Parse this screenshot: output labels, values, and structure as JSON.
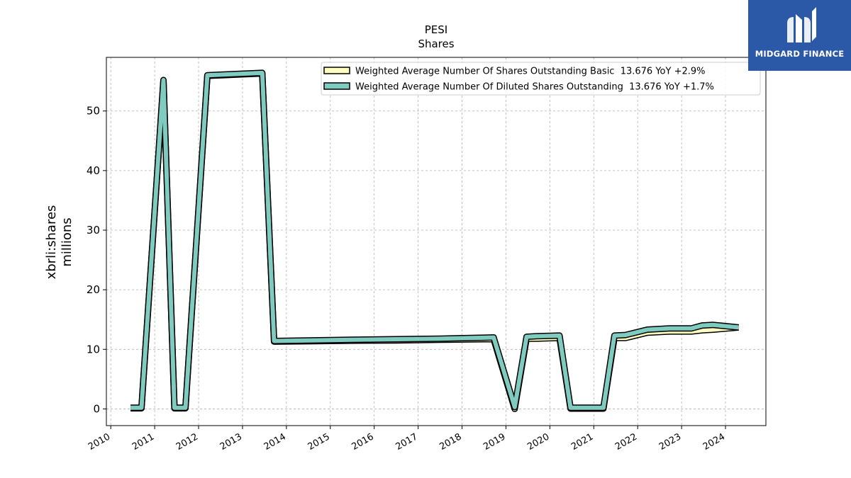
{
  "chart_data": {
    "type": "line",
    "title": "PESI",
    "subtitle": "Shares",
    "ylabel": "xbrli:shares",
    "ylabel2": "millions",
    "xlabel": "",
    "xlim": [
      2009.9,
      2024.92
    ],
    "ylim": [
      -2.8,
      59.0
    ],
    "grid": true,
    "legend_position": "top-right",
    "x_ticks": [
      2010,
      2011,
      2012,
      2013,
      2014,
      2015,
      2016,
      2017,
      2018,
      2019,
      2020,
      2021,
      2022,
      2023,
      2024
    ],
    "x_tick_labels": [
      "2010",
      "2011",
      "2012",
      "2013",
      "2014",
      "2015",
      "2016",
      "2017",
      "2018",
      "2019",
      "2020",
      "2021",
      "2022",
      "2023",
      "2024"
    ],
    "y_ticks": [
      0,
      10,
      20,
      30,
      40,
      50
    ],
    "y_tick_labels": [
      "0",
      "10",
      "20",
      "30",
      "40",
      "50"
    ],
    "series": [
      {
        "name": "Weighted Average Number Of Shares Outstanding Basic  13.676 YoY +2.9%",
        "color": "#ffffbf",
        "x": [
          2010.45,
          2010.7,
          2011.2,
          2011.45,
          2011.7,
          2012.2,
          2013.45,
          2013.72,
          2014.5,
          2015.5,
          2016.5,
          2017.5,
          2018.5,
          2018.72,
          2019.2,
          2019.47,
          2019.7,
          2020.22,
          2020.47,
          2020.72,
          2021.22,
          2021.47,
          2021.72,
          2022.22,
          2022.72,
          2023.22,
          2023.47,
          2023.72,
          2024.3
        ],
        "y": [
          0.1,
          0.1,
          55.1,
          0.1,
          0.1,
          55.9,
          56.3,
          11.3,
          11.35,
          11.45,
          11.5,
          11.6,
          11.7,
          11.7,
          0.0,
          11.8,
          11.8,
          11.9,
          0.05,
          0.05,
          0.05,
          11.9,
          11.9,
          12.8,
          13.0,
          13.0,
          13.2,
          13.3,
          13.676
        ]
      },
      {
        "name": "Weighted Average Number Of Diluted Shares Outstanding  13.676 YoY +1.7%",
        "color": "#80cbbf",
        "x": [
          2010.45,
          2010.7,
          2011.2,
          2011.45,
          2011.7,
          2012.2,
          2013.45,
          2013.72,
          2014.5,
          2015.5,
          2016.5,
          2017.5,
          2018.5,
          2018.72,
          2019.2,
          2019.47,
          2019.7,
          2020.22,
          2020.47,
          2020.72,
          2021.22,
          2021.47,
          2021.72,
          2022.22,
          2022.72,
          2023.22,
          2023.47,
          2023.72,
          2024.3
        ],
        "y": [
          0.2,
          0.2,
          55.2,
          0.2,
          0.2,
          56.0,
          56.4,
          11.4,
          11.5,
          11.6,
          11.7,
          11.8,
          11.95,
          12.0,
          0.3,
          12.1,
          12.2,
          12.3,
          0.2,
          0.2,
          0.2,
          12.3,
          12.4,
          13.3,
          13.5,
          13.5,
          14.0,
          14.1,
          13.676
        ]
      }
    ]
  },
  "logo": {
    "text": "MIDGARD FINANCE",
    "background": "#2c58a8",
    "icon": "midgard-logo-icon"
  }
}
